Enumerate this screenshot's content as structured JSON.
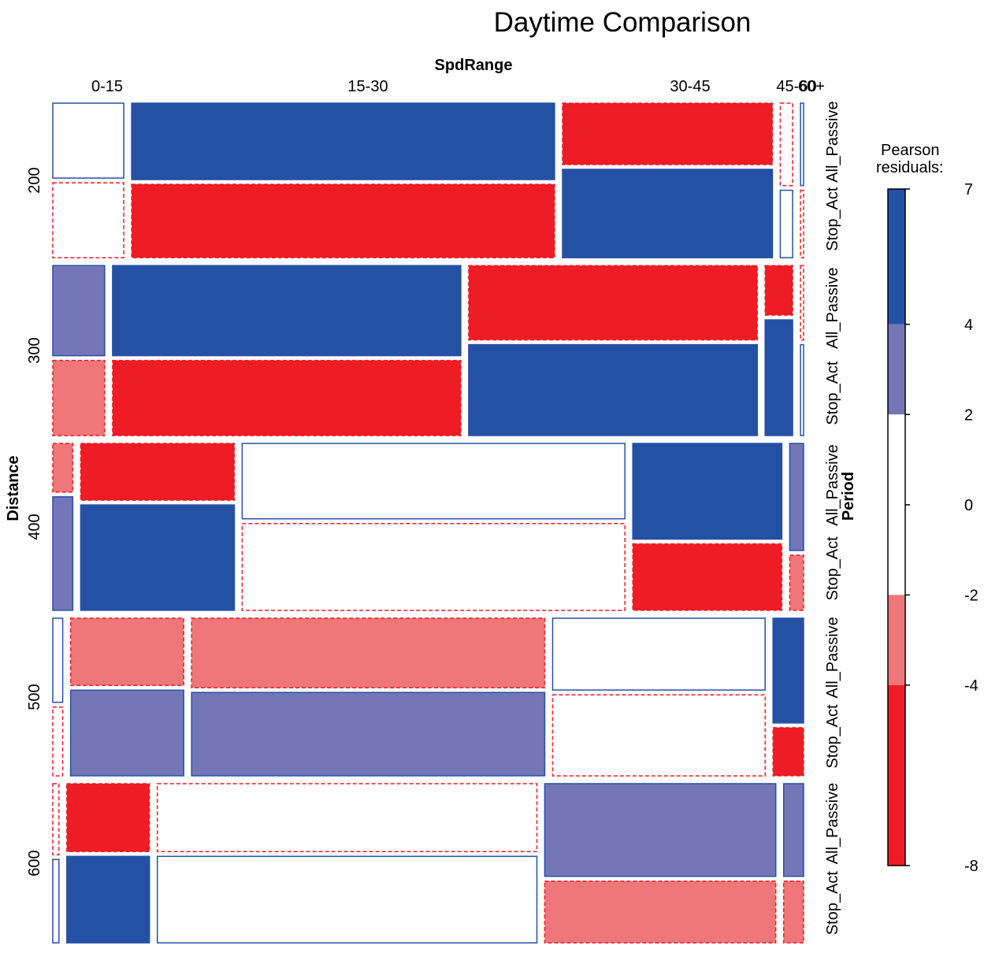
{
  "chart_data": {
    "type": "mosaic",
    "title": "Daytime Comparison",
    "top_axis_label": "SpdRange",
    "left_axis_label": "Distance",
    "right_axis_label": "Period",
    "legend_title_line1": "Pearson",
    "legend_title_line2": "residuals:",
    "spd_categories": [
      "0-15",
      "15-30",
      "30-45",
      "45-60",
      "60+"
    ],
    "spd_tick_labels": [
      "0-15",
      "15-30",
      "30-45",
      "45-60",
      "60+"
    ],
    "distance_categories": [
      "200",
      "300",
      "400",
      "500",
      "600"
    ],
    "period_levels": [
      "All_Passive",
      "Stop_Act"
    ],
    "legend": {
      "ticks": [
        "7",
        "4",
        "2",
        "0",
        "-2",
        "-4",
        "-8"
      ],
      "breaks": [
        7,
        4,
        2,
        0,
        -2,
        -4,
        -8
      ],
      "colors": [
        "#2551a5",
        "#7476b7",
        "#ffffff",
        "#f07779",
        "#ee1c25"
      ]
    },
    "colors": {
      "strong_pos": "#2551a5",
      "pos": "#7476b7",
      "neutral": "#ffffff",
      "neg": "#f07779",
      "strong_neg": "#ee1c25",
      "pos_border": "#2551a5",
      "neg_border": "#ee1c25"
    },
    "residual_classes_by_distance": {
      "note": "classes: sp=strong positive, p=positive, n=neutral positive border, nn=neutral negative border, m=negative, sm=strong negative",
      "200": {
        "widths": [
          0.092,
          0.548,
          0.272,
          0.016,
          0.004
        ],
        "all_passive_share": [
          0.5,
          0.51,
          0.41,
          0.55,
          0.55
        ],
        "all_passive": [
          "n",
          "sp",
          "sm",
          "nn",
          "n"
        ],
        "stop_act": [
          "nn",
          "sm",
          "sp",
          "n",
          "nn"
        ]
      },
      "300": {
        "widths": [
          0.068,
          0.456,
          0.378,
          0.036,
          0.004
        ],
        "all_passive_share": [
          0.545,
          0.545,
          0.45,
          0.3,
          0.45
        ],
        "all_passive": [
          "p",
          "sp",
          "sm",
          "sm",
          "nn"
        ],
        "stop_act": [
          "m",
          "sm",
          "sp",
          "sp",
          "n"
        ]
      },
      "400": {
        "widths": [
          0.026,
          0.2,
          0.498,
          0.194,
          0.018
        ],
        "all_passive_share": [
          0.3,
          0.35,
          0.465,
          0.59,
          0.66
        ],
        "all_passive": [
          "m",
          "sm",
          "n",
          "sp",
          "p"
        ],
        "stop_act": [
          "p",
          "sp",
          "nn",
          "sm",
          "m"
        ]
      },
      "500": {
        "widths": [
          0.013,
          0.148,
          0.462,
          0.278,
          0.04
        ],
        "all_passive_share": [
          0.55,
          0.44,
          0.455,
          0.47,
          0.685
        ],
        "all_passive": [
          "n",
          "m",
          "m",
          "n",
          "sp"
        ],
        "stop_act": [
          "nn",
          "p",
          "p",
          "nn",
          "sm"
        ]
      },
      "600": {
        "widths": [
          0.008,
          0.108,
          0.496,
          0.302,
          0.026
        ],
        "all_passive_share": [
          0.46,
          0.44,
          0.44,
          0.6,
          0.6
        ],
        "all_passive": [
          "nn",
          "sm",
          "nn",
          "p",
          "p"
        ],
        "stop_act": [
          "n",
          "sp",
          "n",
          "m",
          "m"
        ]
      }
    },
    "distance_shares": [
      0.2,
      0.22,
      0.216,
      0.204,
      0.206
    ]
  }
}
